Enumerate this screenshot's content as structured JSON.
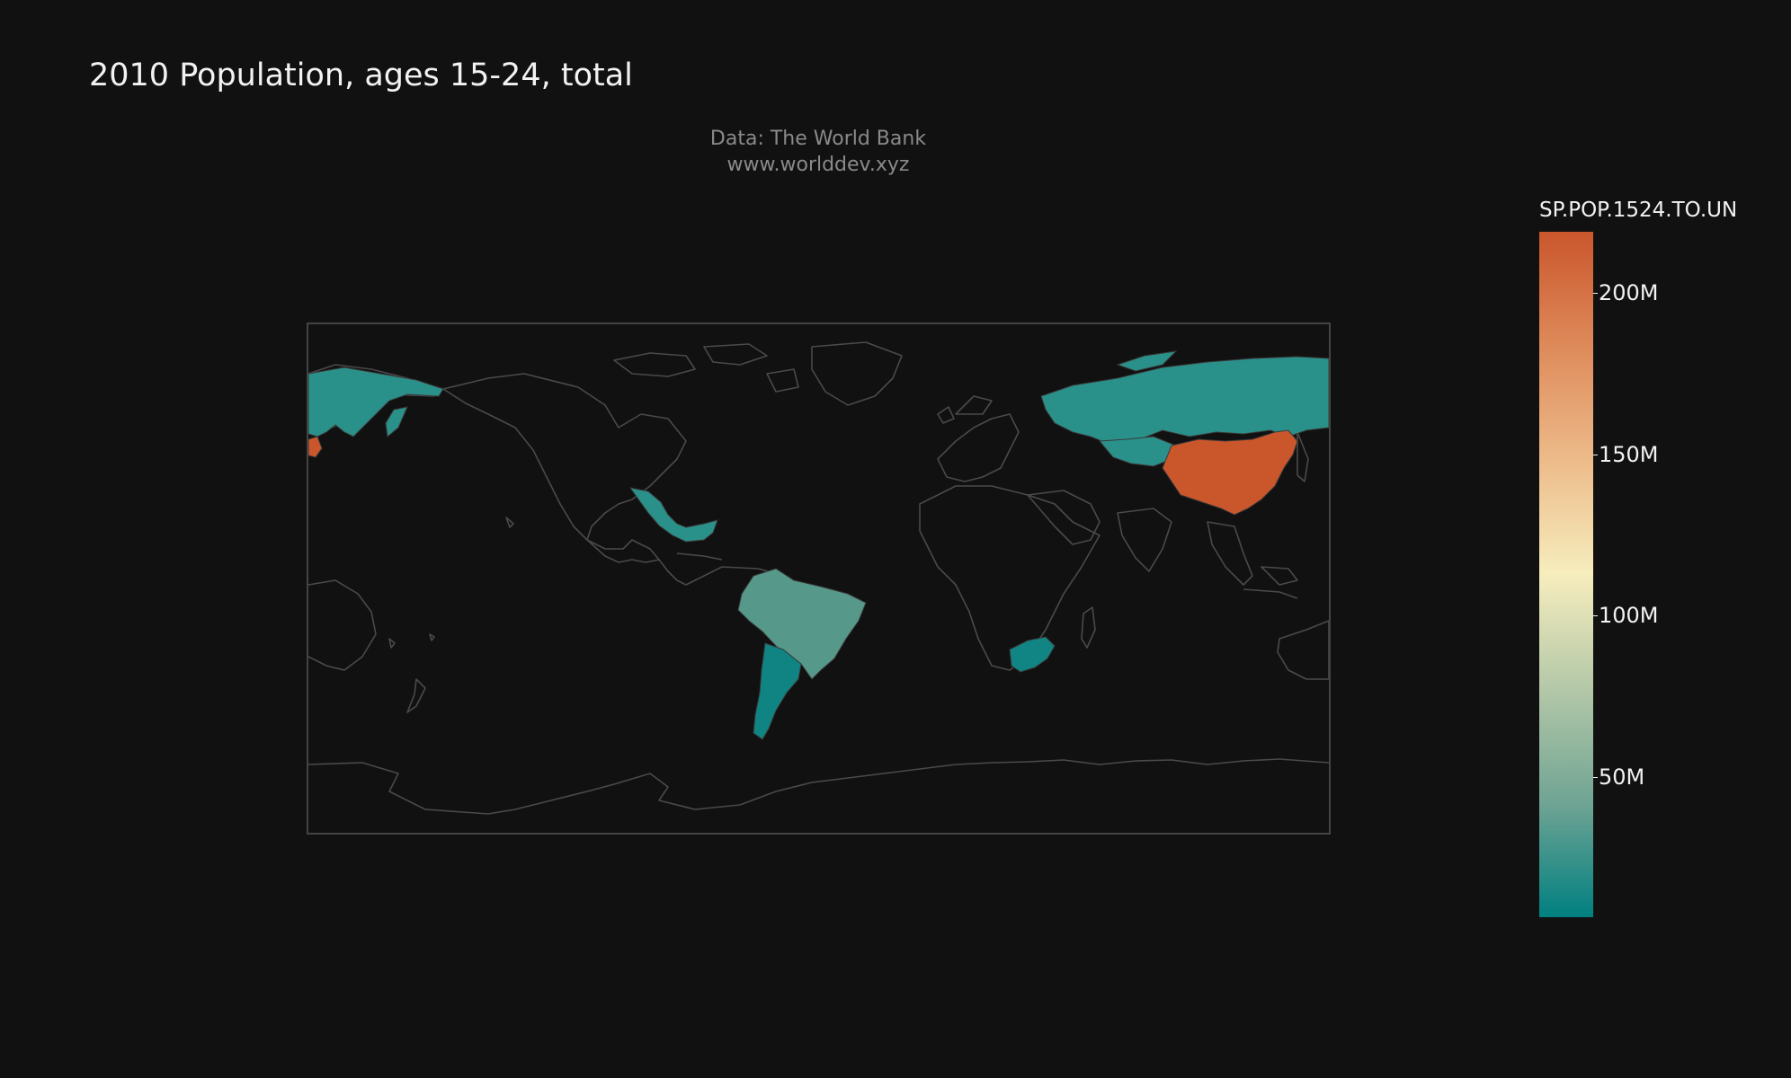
{
  "title": "2010 Population, ages 15-24, total",
  "source": {
    "line1": "Data: The World Bank",
    "line2": "www.worlddev.xyz"
  },
  "colorbar": {
    "title": "SP.POP.1524.TO.UN",
    "ticks": [
      "200M",
      "150M",
      "100M",
      "50M"
    ],
    "range": [
      5000000,
      221000000
    ],
    "colors": [
      "#008080",
      "#70a494",
      "#b4c8a8",
      "#f6edbd",
      "#edbb8a",
      "#de8a5a",
      "#ca562c"
    ]
  },
  "map": {
    "projection": "equirectangular",
    "center_lon": -100,
    "background": "#111111",
    "coastline": "#4a4a4a",
    "highlighted_countries": [
      {
        "name": "China",
        "color": "#ca562c"
      },
      {
        "name": "Japan",
        "color": "#ca562c"
      },
      {
        "name": "Russia",
        "color": "#2a918a"
      },
      {
        "name": "Kazakhstan",
        "color": "#2a918a"
      },
      {
        "name": "Mexico",
        "color": "#2a918a"
      },
      {
        "name": "Brazil",
        "color": "#56998a"
      },
      {
        "name": "Argentina",
        "color": "#0f8482"
      },
      {
        "name": "South Africa",
        "color": "#108584"
      }
    ]
  }
}
